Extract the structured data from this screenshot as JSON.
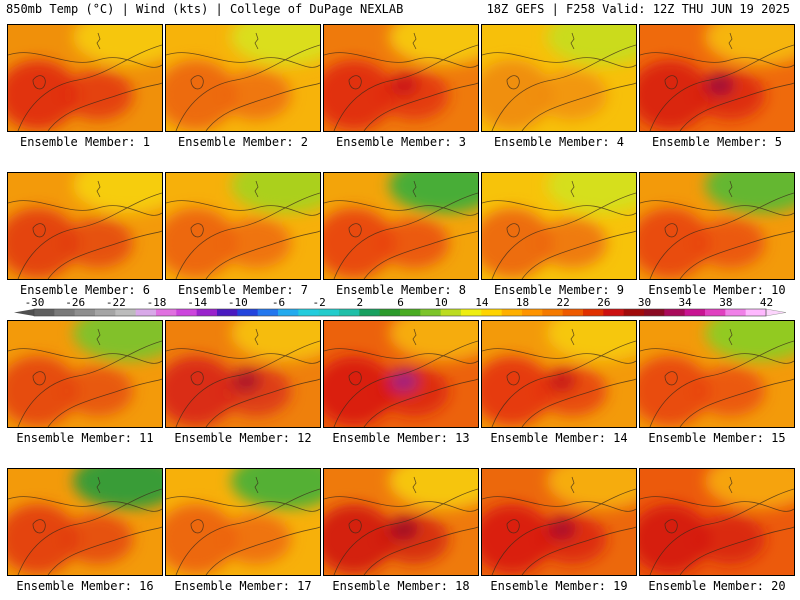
{
  "header": {
    "left": "850mb Temp (°C) | Wind (kts) | College of DuPage NEXLAB",
    "right": "18Z GEFS | F258 Valid: 12Z THU JUN 19 2025"
  },
  "caption_prefix": "Ensemble Member: ",
  "members": [
    {
      "label": "Ensemble Member: 1",
      "base": "#f0900a",
      "warm": "#e02a10",
      "hot": null,
      "cool": "#f7c90b"
    },
    {
      "label": "Ensemble Member: 2",
      "base": "#f7b30a",
      "warm": "#ec6410",
      "hot": null,
      "cool": "#d9e01a"
    },
    {
      "label": "Ensemble Member: 3",
      "base": "#ef7a0c",
      "warm": "#e0280f",
      "hot": "#c81414",
      "cool": "#f7c90b"
    },
    {
      "label": "Ensemble Member: 4",
      "base": "#f7c00a",
      "warm": "#f08a0c",
      "hot": null,
      "cool": "#c8dc1a"
    },
    {
      "label": "Ensemble Member: 5",
      "base": "#ef6a0c",
      "warm": "#d81c12",
      "hot": "#9c0a3a",
      "cool": "#f7b80a"
    },
    {
      "label": "Ensemble Member: 6",
      "base": "#f39a0a",
      "warm": "#e23a10",
      "hot": null,
      "cool": "#f7d00b"
    },
    {
      "label": "Ensemble Member: 7",
      "base": "#f7b00a",
      "warm": "#ec6010",
      "hot": null,
      "cool": "#a8d21a"
    },
    {
      "label": "Ensemble Member: 8",
      "base": "#f3a40a",
      "warm": "#e84010",
      "hot": null,
      "cool": "#3fae3a"
    },
    {
      "label": "Ensemble Member: 9",
      "base": "#f7c30a",
      "warm": "#ec6410",
      "hot": null,
      "cool": "#d4e01a"
    },
    {
      "label": "Ensemble Member: 10",
      "base": "#f39a0a",
      "warm": "#e84410",
      "hot": null,
      "cool": "#5cb833"
    },
    {
      "label": "Ensemble Member: 11",
      "base": "#f39a0a",
      "warm": "#e44410",
      "hot": null,
      "cool": "#7cc32a"
    },
    {
      "label": "Ensemble Member: 12",
      "base": "#ef800c",
      "warm": "#d8261a",
      "hot": "#a8142a",
      "cool": "#f7c00a"
    },
    {
      "label": "Ensemble Member: 13",
      "base": "#ec620c",
      "warm": "#d81a12",
      "hot": "#9c1a88",
      "cool": "#f7b00a"
    },
    {
      "label": "Ensemble Member: 14",
      "base": "#f39a0a",
      "warm": "#e43010",
      "hot": "#c41414",
      "cool": "#f7c90b"
    },
    {
      "label": "Ensemble Member: 15",
      "base": "#f39a0a",
      "warm": "#e84410",
      "hot": null,
      "cool": "#8ccc24"
    },
    {
      "label": "Ensemble Member: 16",
      "base": "#f39a0a",
      "warm": "#e23a10",
      "hot": null,
      "cool": "#2f9c3a"
    },
    {
      "label": "Ensemble Member: 17",
      "base": "#f7b00a",
      "warm": "#ec6010",
      "hot": null,
      "cool": "#4cb036"
    },
    {
      "label": "Ensemble Member: 18",
      "base": "#ef7a0c",
      "warm": "#d01a12",
      "hot": "#9c0a28",
      "cool": "#f7c90b"
    },
    {
      "label": "Ensemble Member: 19",
      "base": "#ec680c",
      "warm": "#d81a12",
      "hot": "#a8102e",
      "cool": "#f7b00a"
    },
    {
      "label": "Ensemble Member: 20",
      "base": "#ec5a0c",
      "warm": "#d41a12",
      "hot": null,
      "cool": "#f7a80a"
    }
  ],
  "colorbar": {
    "ticks": [
      "-30",
      "-26",
      "-22",
      "-18",
      "-14",
      "-10",
      "-6",
      "-2",
      "2",
      "6",
      "10",
      "14",
      "18",
      "22",
      "26",
      "30",
      "34",
      "38",
      "42"
    ],
    "colors": [
      "#606060",
      "#7a7a7a",
      "#8f8f8f",
      "#a5a5a5",
      "#bcbcbc",
      "#d8a8e8",
      "#e070e0",
      "#cc44dd",
      "#9922cc",
      "#4a1ac0",
      "#2244dd",
      "#2277ee",
      "#22aaee",
      "#22ccdd",
      "#22cccc",
      "#1fbfa8",
      "#18a060",
      "#2c9a2c",
      "#4aac22",
      "#7cc42a",
      "#bcdc20",
      "#eeee10",
      "#ffd400",
      "#ffb000",
      "#ff9400",
      "#f57a00",
      "#ee5a00",
      "#e03000",
      "#cc1010",
      "#a00a0a",
      "#8a0a22",
      "#a80a5a",
      "#c81492",
      "#e040c0",
      "#f080e8",
      "#ffb8ff"
    ],
    "left_arrow": "#505050",
    "right_arrow": "#fcd4fc"
  }
}
